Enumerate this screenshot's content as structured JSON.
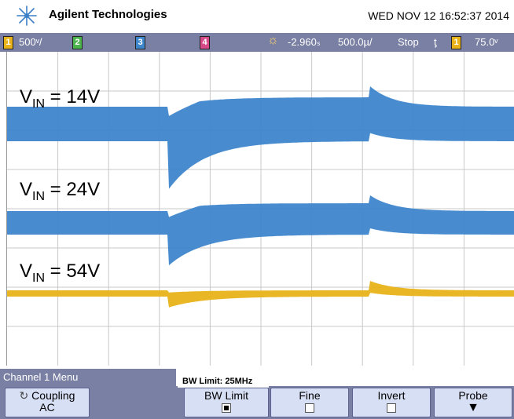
{
  "header": {
    "brand": "Agilent Technologies",
    "datetime": "WED NOV 12 16:52:37 2014"
  },
  "status": {
    "ch1_num": "1",
    "ch1_scale": "500ᵛ/",
    "ch2_num": "2",
    "ch3_num": "3",
    "ch4_num": "4",
    "time_offset": "-2.960ₛ",
    "time_scale": "500.0µ/",
    "run_state": "Stop",
    "trig_num": "1",
    "trig_level": "75.0ᵛ"
  },
  "traces": [
    {
      "label_main": "V",
      "label_sub": "IN",
      "label_rest": " = 14V",
      "color": "#3e86cc"
    },
    {
      "label_main": "V",
      "label_sub": "IN",
      "label_rest": " = 24V",
      "color": "#3e86cc"
    },
    {
      "label_main": "V",
      "label_sub": "IN",
      "label_rest": " = 54V",
      "color": "#e8b31a"
    }
  ],
  "menu": {
    "title": "Channel 1  Menu",
    "bw_note": "BW Limit: 25MHz",
    "coupling_label": "Coupling",
    "coupling_value": "AC",
    "bw_label": "BW Limit",
    "fine_label": "Fine",
    "invert_label": "Invert",
    "probe_label": "Probe"
  },
  "colors": {
    "accent": "#7a80a4",
    "trace_blue": "#3e86cc",
    "trace_yellow": "#e8b31a"
  }
}
